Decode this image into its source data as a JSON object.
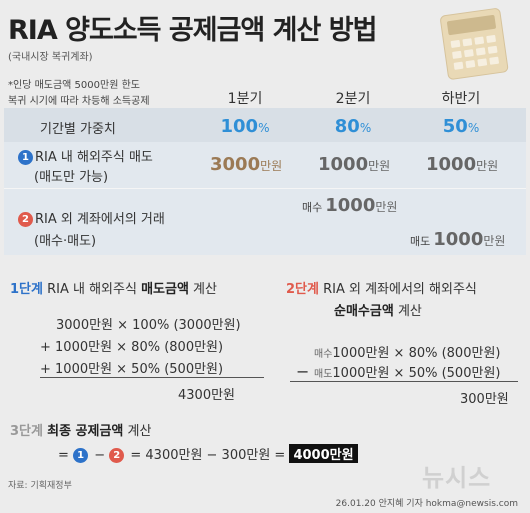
{
  "header": {
    "title": "RIA 양도소득 공제금액 계산 방법",
    "subtitle": "(국내시장 복귀계좌)"
  },
  "note": {
    "line1": "*인당 매도금액 5000만원 한도",
    "line2": "복귀 시기에 따라 차등해 소득공제"
  },
  "table": {
    "columns": [
      "1분기",
      "2분기",
      "하반기"
    ],
    "weight_label": "기간별 가중치",
    "weights": [
      {
        "num": "100",
        "unit": "%"
      },
      {
        "num": "80",
        "unit": "%"
      },
      {
        "num": "50",
        "unit": "%"
      }
    ],
    "row1": {
      "marker": "1",
      "label_line1": "RIA 내 해외주식 매도",
      "label_line2": "(매도만 가능)",
      "amounts": [
        {
          "num": "3000",
          "unit": "만원"
        },
        {
          "num": "1000",
          "unit": "만원"
        },
        {
          "num": "1000",
          "unit": "만원"
        }
      ]
    },
    "row2": {
      "marker": "2",
      "label_line1": "RIA 외 계좌에서의 거래",
      "label_line2": "(매수·매도)",
      "buy": {
        "tag": "매수",
        "num": "1000",
        "unit": "만원"
      },
      "sell": {
        "tag": "매도",
        "num": "1000",
        "unit": "만원"
      }
    }
  },
  "step1": {
    "num": "1단계",
    "title_pre": "RIA 내 해외주식 ",
    "title_bold": "매도금액",
    "title_post": " 계산",
    "lines": [
      "3000만원  ×  100%  (3000만원)",
      "+  1000만원  ×  80%    (800만원)",
      "+  1000만원  ×  50%    (500만원)"
    ],
    "total": "4300만원"
  },
  "step2": {
    "num": "2단계",
    "title_line1": "RIA 외 계좌에서의 해외주식",
    "title_bold": "순매수금액",
    "title_post": " 계산",
    "buy_tag": "매수",
    "buy_line": "1000만원  ×  80%  (800만원)",
    "minus": "−",
    "sell_tag": "매도",
    "sell_line": "1000만원  ×  50%  (500만원)",
    "total": "300만원"
  },
  "step3": {
    "num": "3단계",
    "title_bold": "최종 공제금액",
    "title_post": " 계산",
    "eq_prefix": "=",
    "marker1": "1",
    "dash": "−",
    "marker2": "2",
    "eq_mid": "= 4300만원  −  300만원  =",
    "result": "4000만원"
  },
  "footer": {
    "source": "자료: 기획재정부",
    "watermark": "뉴시스",
    "credit": "26.01.20  안지혜 기자  hokma@newsis.com"
  },
  "colors": {
    "accent_blue": "#2f8fd6",
    "marker_blue": "#2d72c9",
    "marker_red": "#e05a4c",
    "amount_brown": "#9b7a55",
    "band": "#e2e8ee"
  }
}
